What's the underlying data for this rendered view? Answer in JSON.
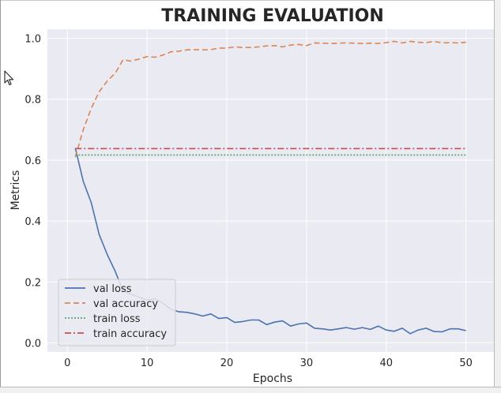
{
  "chart_data": {
    "type": "line",
    "title": "TRAINING EVALUATION",
    "xlabel": "Epochs",
    "ylabel": "Metrics",
    "xlim": [
      -2.5,
      53.5
    ],
    "ylim": [
      -0.03,
      1.03
    ],
    "x_ticks": [
      0,
      10,
      20,
      30,
      40,
      50
    ],
    "x_tick_labels": [
      "0",
      "10",
      "20",
      "30",
      "40",
      "50"
    ],
    "y_ticks": [
      0.0,
      0.2,
      0.4,
      0.6,
      0.8,
      1.0
    ],
    "y_tick_labels": [
      "0.0",
      "0.2",
      "0.4",
      "0.6",
      "0.8",
      "1.0"
    ],
    "grid": true,
    "legend_position": "bottom-left",
    "x": [
      1,
      2,
      3,
      4,
      5,
      6,
      7,
      8,
      9,
      10,
      11,
      12,
      13,
      14,
      15,
      16,
      17,
      18,
      19,
      20,
      21,
      22,
      23,
      24,
      25,
      26,
      27,
      28,
      29,
      30,
      31,
      32,
      33,
      34,
      35,
      36,
      37,
      38,
      39,
      40,
      41,
      42,
      43,
      44,
      45,
      46,
      47,
      48,
      49,
      50
    ],
    "series": [
      {
        "name": "val loss",
        "color": "#4c72b0",
        "dash": "",
        "values": [
          0.64,
          0.53,
          0.46,
          0.355,
          0.29,
          0.235,
          0.17,
          0.16,
          0.15,
          0.14,
          0.145,
          0.13,
          0.11,
          0.102,
          0.1,
          0.095,
          0.088,
          0.095,
          0.08,
          0.083,
          0.067,
          0.07,
          0.075,
          0.075,
          0.06,
          0.068,
          0.072,
          0.055,
          0.062,
          0.065,
          0.048,
          0.046,
          0.042,
          0.046,
          0.05,
          0.045,
          0.05,
          0.044,
          0.055,
          0.042,
          0.038,
          0.048,
          0.03,
          0.042,
          0.048,
          0.037,
          0.036,
          0.046,
          0.046,
          0.04
        ]
      },
      {
        "name": "val accuracy",
        "color": "#dd8452",
        "dash": "7,4",
        "values": [
          0.61,
          0.7,
          0.77,
          0.825,
          0.86,
          0.885,
          0.93,
          0.925,
          0.932,
          0.94,
          0.938,
          0.945,
          0.956,
          0.958,
          0.962,
          0.963,
          0.962,
          0.963,
          0.968,
          0.968,
          0.972,
          0.97,
          0.97,
          0.972,
          0.975,
          0.976,
          0.972,
          0.978,
          0.98,
          0.976,
          0.985,
          0.984,
          0.983,
          0.984,
          0.985,
          0.984,
          0.983,
          0.984,
          0.983,
          0.986,
          0.99,
          0.985,
          0.99,
          0.987,
          0.986,
          0.99,
          0.985,
          0.986,
          0.985,
          0.987
        ]
      },
      {
        "name": "train loss",
        "color": "#55a868",
        "dash": "2,2",
        "values": [
          0.617,
          0.617,
          0.617,
          0.617,
          0.617,
          0.617,
          0.617,
          0.617,
          0.617,
          0.617,
          0.617,
          0.617,
          0.617,
          0.617,
          0.617,
          0.617,
          0.617,
          0.617,
          0.617,
          0.617,
          0.617,
          0.617,
          0.617,
          0.617,
          0.617,
          0.617,
          0.617,
          0.617,
          0.617,
          0.617,
          0.617,
          0.617,
          0.617,
          0.617,
          0.617,
          0.617,
          0.617,
          0.617,
          0.617,
          0.617,
          0.617,
          0.617,
          0.617,
          0.617,
          0.617,
          0.617,
          0.617,
          0.617,
          0.617,
          0.617
        ]
      },
      {
        "name": "train accuracy",
        "color": "#c44e52",
        "dash": "8,3,2,3",
        "values": [
          0.638,
          0.638,
          0.638,
          0.638,
          0.638,
          0.638,
          0.638,
          0.638,
          0.638,
          0.638,
          0.638,
          0.638,
          0.638,
          0.638,
          0.638,
          0.638,
          0.638,
          0.638,
          0.638,
          0.638,
          0.638,
          0.638,
          0.638,
          0.638,
          0.638,
          0.638,
          0.638,
          0.638,
          0.638,
          0.638,
          0.638,
          0.638,
          0.638,
          0.638,
          0.638,
          0.638,
          0.638,
          0.638,
          0.638,
          0.638,
          0.638,
          0.638,
          0.638,
          0.638,
          0.638,
          0.638,
          0.638,
          0.638,
          0.638,
          0.638
        ]
      }
    ]
  },
  "colors": {
    "plot_background": "#eaeaf2",
    "grid": "#ffffff",
    "text": "#262626"
  }
}
